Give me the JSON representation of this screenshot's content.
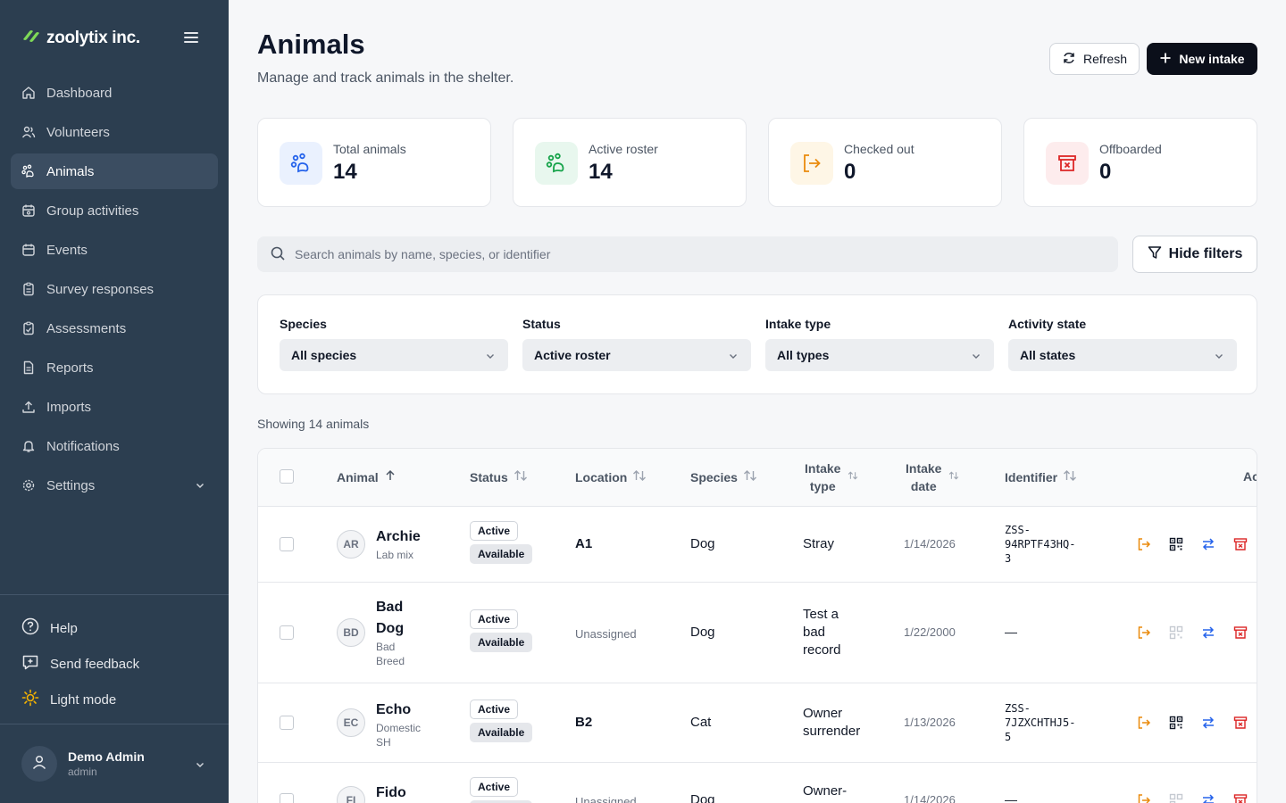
{
  "brand": {
    "name": "zoolytix inc."
  },
  "sidebar": {
    "items": [
      {
        "label": "Dashboard",
        "icon": "home-icon"
      },
      {
        "label": "Volunteers",
        "icon": "users-icon"
      },
      {
        "label": "Animals",
        "icon": "paw-icon",
        "active": true
      },
      {
        "label": "Group activities",
        "icon": "calendar-group-icon"
      },
      {
        "label": "Events",
        "icon": "calendar-icon"
      },
      {
        "label": "Survey responses",
        "icon": "clipboard-icon"
      },
      {
        "label": "Assessments",
        "icon": "clipboard-check-icon"
      },
      {
        "label": "Reports",
        "icon": "report-icon"
      },
      {
        "label": "Imports",
        "icon": "upload-icon"
      },
      {
        "label": "Notifications",
        "icon": "bell-icon"
      },
      {
        "label": "Settings",
        "icon": "gear-icon"
      }
    ],
    "bottom": [
      {
        "label": "Help",
        "icon": "help-icon"
      },
      {
        "label": "Send feedback",
        "icon": "feedback-icon"
      },
      {
        "label": "Light mode",
        "icon": "sun-icon"
      }
    ],
    "user": {
      "name": "Demo Admin",
      "role": "admin"
    }
  },
  "header": {
    "title": "Animals",
    "subtitle": "Manage and track animals in the shelter.",
    "refresh_label": "Refresh",
    "new_label": "New intake"
  },
  "stats": [
    {
      "label": "Total animals",
      "value": "14",
      "color": "#2563eb",
      "bg": "#eaf1fe"
    },
    {
      "label": "Active roster",
      "value": "14",
      "color": "#16a34a",
      "bg": "#e8f7ee"
    },
    {
      "label": "Checked out",
      "value": "0",
      "color": "#ea8a0c",
      "bg": "#fef6e6"
    },
    {
      "label": "Offboarded",
      "value": "0",
      "color": "#dc2626",
      "bg": "#fdeced"
    }
  ],
  "search": {
    "placeholder": "Search animals by name, species, or identifier"
  },
  "filters_button": "Hide filters",
  "filters": [
    {
      "label": "Species",
      "value": "All species"
    },
    {
      "label": "Status",
      "value": "Active roster"
    },
    {
      "label": "Intake type",
      "value": "All types"
    },
    {
      "label": "Activity state",
      "value": "All states"
    }
  ],
  "showing": "Showing 14 animals",
  "table": {
    "columns": {
      "animal": "Animal",
      "status": "Status",
      "location": "Location",
      "species": "Species",
      "intake_type_1": "Intake",
      "intake_type_2": "type",
      "intake_date_1": "Intake",
      "intake_date_2": "date",
      "identifier": "Identifier",
      "actions": "Ac"
    },
    "rows": [
      {
        "initials": "AR",
        "name": "Archie",
        "name2": "",
        "breed": "Lab mix",
        "breed2": "",
        "status": "Active",
        "availability": "Available",
        "location": "A1",
        "species": "Dog",
        "intake1": "Stray",
        "intake2": "",
        "intake3": "",
        "date": "1/14/2026",
        "id1": "ZSS-",
        "id2": "94RPTF43HQ-",
        "id3": "3"
      },
      {
        "initials": "BD",
        "name": "Bad",
        "name2": "Dog",
        "breed": "Bad",
        "breed2": "Breed",
        "status": "Active",
        "availability": "Available",
        "location": "Unassigned",
        "species": "Dog",
        "intake1": "Test a",
        "intake2": "bad",
        "intake3": "record",
        "date": "1/22/2000",
        "id1": "—",
        "id2": "",
        "id3": ""
      },
      {
        "initials": "EC",
        "name": "Echo",
        "name2": "",
        "breed": "Domestic",
        "breed2": "SH",
        "status": "Active",
        "availability": "Available",
        "location": "B2",
        "species": "Cat",
        "intake1": "Owner",
        "intake2": "surrender",
        "intake3": "",
        "date": "1/13/2026",
        "id1": "ZSS-",
        "id2": "7JZXCHTHJ5-",
        "id3": "5"
      },
      {
        "initials": "FI",
        "name": "Fido",
        "name2": "",
        "breed": "",
        "breed2": "",
        "status": "Active",
        "availability": "",
        "location": "Unassigned",
        "species": "Dog",
        "intake1": "Owner-",
        "intake2": "",
        "intake3": "",
        "date": "1/14/2026",
        "id1": "—",
        "id2": "",
        "id3": ""
      }
    ]
  }
}
